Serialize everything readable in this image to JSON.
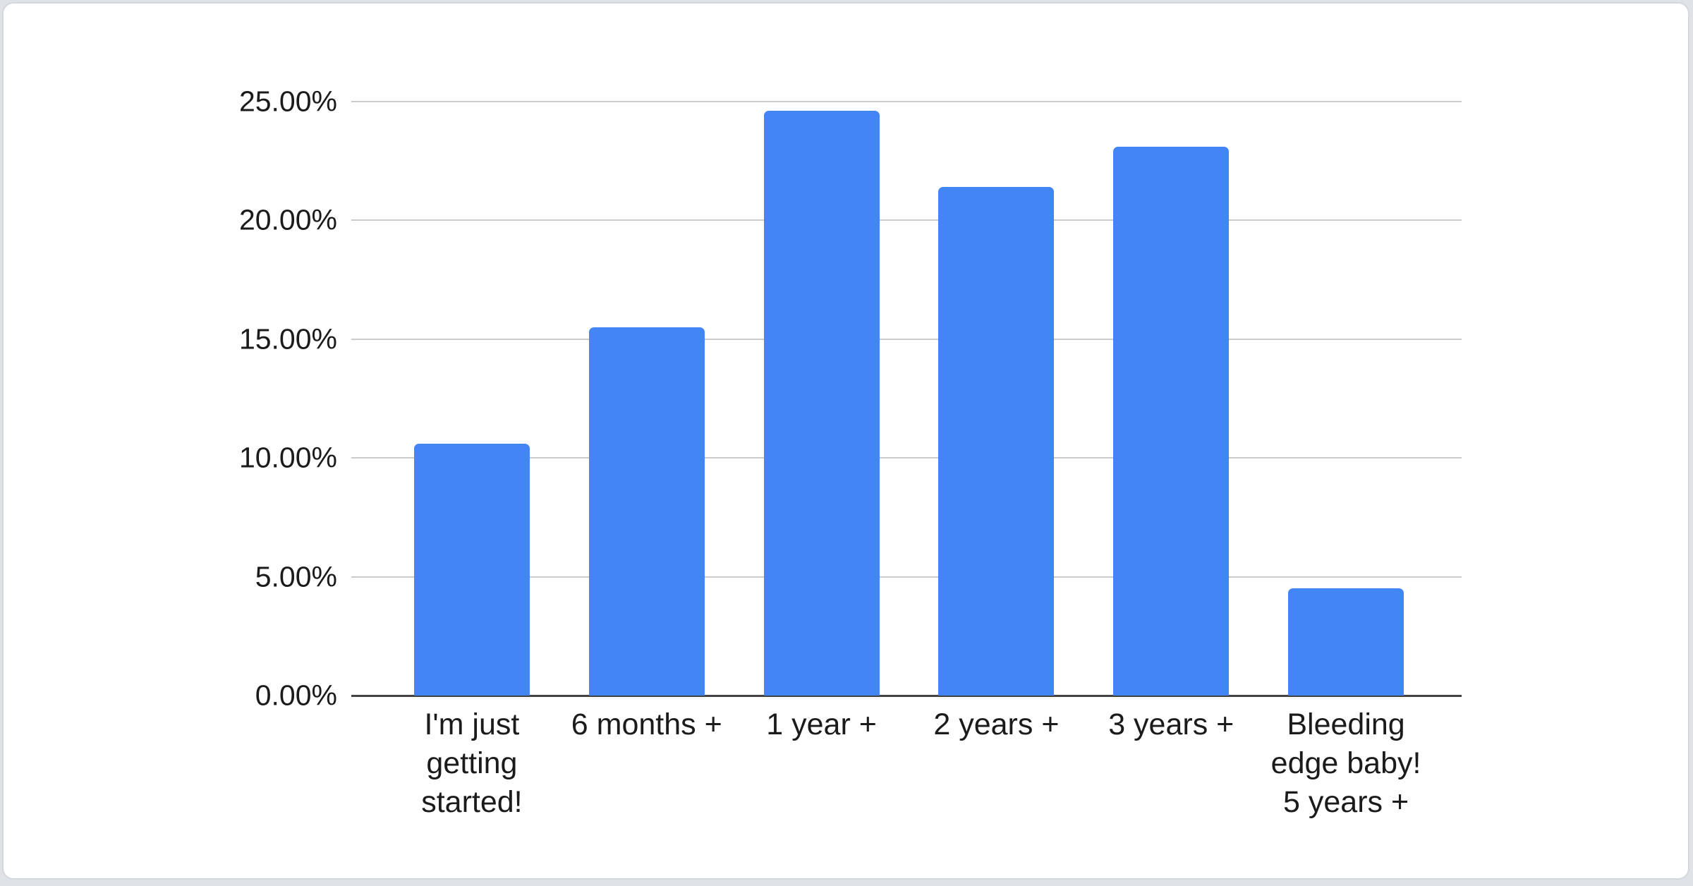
{
  "page": {
    "background_color": "#dfe2e6",
    "card_background_color": "#ffffff",
    "card_border_color": "#d4d7db"
  },
  "chart_data": {
    "type": "bar",
    "categories": [
      "I'm just getting started!",
      "6 months +",
      "1 year +",
      "2 years +",
      "3 years +",
      "Bleeding edge baby! 5 years +"
    ],
    "category_lines": [
      [
        "I'm just",
        "getting",
        "started!"
      ],
      [
        "6 months +"
      ],
      [
        "1 year +"
      ],
      [
        "2 years +"
      ],
      [
        "3 years +"
      ],
      [
        "Bleeding",
        "edge baby!",
        "5 years +"
      ]
    ],
    "values": [
      10.6,
      15.5,
      24.6,
      21.4,
      23.1,
      4.5
    ],
    "unit": "%",
    "title": "",
    "xlabel": "",
    "ylabel": "",
    "ylim": [
      0,
      25
    ],
    "ytick_labels": [
      "25.00%",
      "20.00%",
      "15.00%",
      "10.00%",
      "5.00%",
      "0.00%"
    ],
    "grid": true,
    "legend_position": "none",
    "bar_color": "#4285f4",
    "gridline_color": "#cccccc",
    "axis_line_color": "#424242",
    "text_color": "#1b1b1b"
  }
}
